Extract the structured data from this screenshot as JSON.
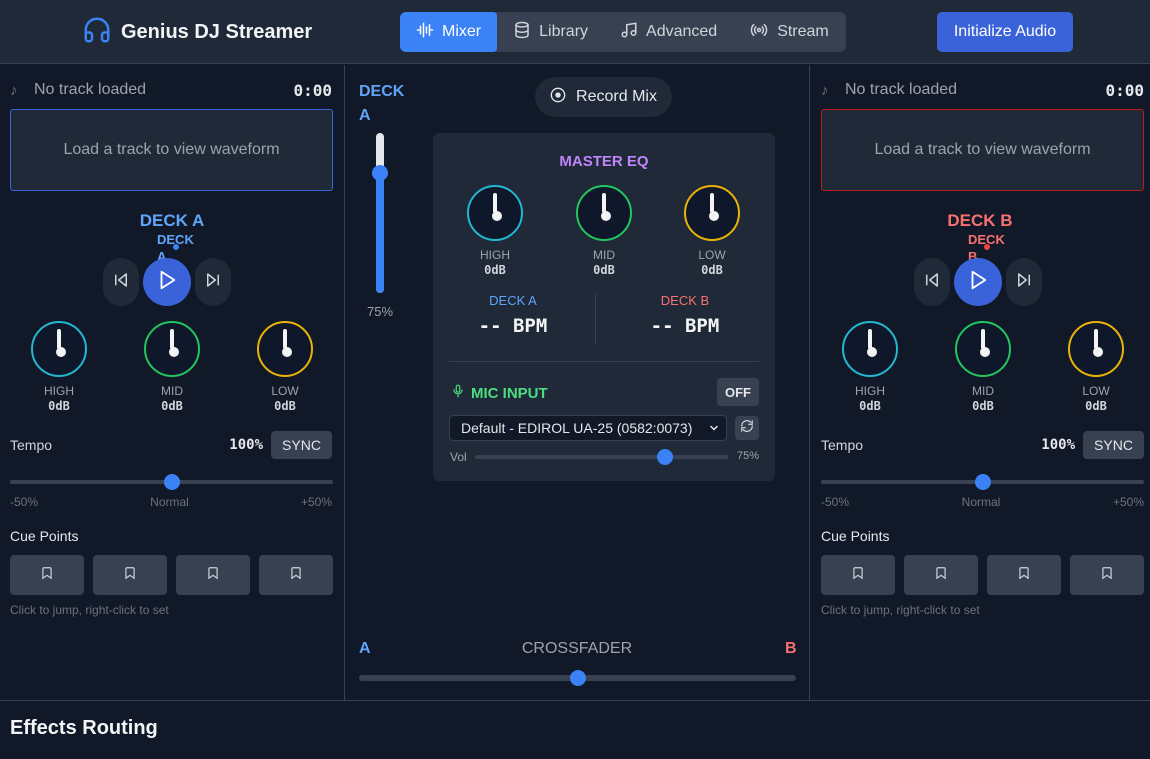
{
  "app": {
    "title": "Genius DJ Streamer"
  },
  "tabs": [
    {
      "label": "Mixer",
      "icon": "waveform-icon",
      "active": true
    },
    {
      "label": "Library",
      "icon": "database-icon",
      "active": false
    },
    {
      "label": "Advanced",
      "icon": "music-note-icon",
      "active": false
    },
    {
      "label": "Stream",
      "icon": "broadcast-icon",
      "active": false
    }
  ],
  "header": {
    "init_label": "Initialize Audio"
  },
  "deck_a": {
    "track": "No track loaded",
    "time": "0:00",
    "waveform_placeholder": "Load a track to view waveform",
    "label": "DECK A",
    "sub_label": "DECK A",
    "eq": [
      {
        "label": "HIGH",
        "value": "0dB",
        "color": "#22b8cf"
      },
      {
        "label": "MID",
        "value": "0dB",
        "color": "#22c55e"
      },
      {
        "label": "LOW",
        "value": "0dB",
        "color": "#eab308"
      }
    ],
    "tempo_label": "Tempo",
    "tempo_value": "100%",
    "sync_label": "SYNC",
    "tempo_position": 0.5,
    "scale_min": "-50%",
    "scale_mid": "Normal",
    "scale_max": "+50%",
    "cue_title": "Cue Points",
    "cue_hint": "Click to jump, right-click to set"
  },
  "deck_b": {
    "track": "No track loaded",
    "time": "0:00",
    "waveform_placeholder": "Load a track to view waveform",
    "label": "DECK B",
    "sub_label": "DECK B",
    "eq": [
      {
        "label": "HIGH",
        "value": "0dB",
        "color": "#22b8cf"
      },
      {
        "label": "MID",
        "value": "0dB",
        "color": "#22c55e"
      },
      {
        "label": "LOW",
        "value": "0dB",
        "color": "#eab308"
      }
    ],
    "tempo_label": "Tempo",
    "tempo_value": "100%",
    "sync_label": "SYNC",
    "tempo_position": 0.5,
    "scale_min": "-50%",
    "scale_mid": "Normal",
    "scale_max": "+50%",
    "cue_title": "Cue Points",
    "cue_hint": "Click to jump, right-click to set"
  },
  "center": {
    "deck_a_volume_label": "DECK A",
    "deck_a_volume_value": "75%",
    "deck_a_volume_level": 0.75,
    "record_label": "Record Mix",
    "master_eq_title": "MASTER EQ",
    "master_eq": [
      {
        "label": "HIGH",
        "value": "0dB",
        "color": "#22b8cf"
      },
      {
        "label": "MID",
        "value": "0dB",
        "color": "#22c55e"
      },
      {
        "label": "LOW",
        "value": "0dB",
        "color": "#eab308"
      }
    ],
    "bpm_a_label": "DECK A",
    "bpm_a_value": "-- BPM",
    "bpm_b_label": "DECK B",
    "bpm_b_value": "-- BPM",
    "mic_title": "MIC INPUT",
    "mic_toggle": "OFF",
    "mic_device": "Default - EDIROL UA-25 (0582:0073)",
    "vol_label": "Vol",
    "vol_value": "75%",
    "vol_level": 0.75,
    "crossfader_title": "CROSSFADER",
    "crossfader_a": "A",
    "crossfader_b": "B",
    "crossfader_position": 0.5
  },
  "effects": {
    "title": "Effects Routing"
  },
  "colors": {
    "accent": "#3b82f6",
    "deck_a": "#60a5fa",
    "deck_b": "#f87171",
    "eq_title": "#c084fc",
    "mic": "#4ade80"
  }
}
